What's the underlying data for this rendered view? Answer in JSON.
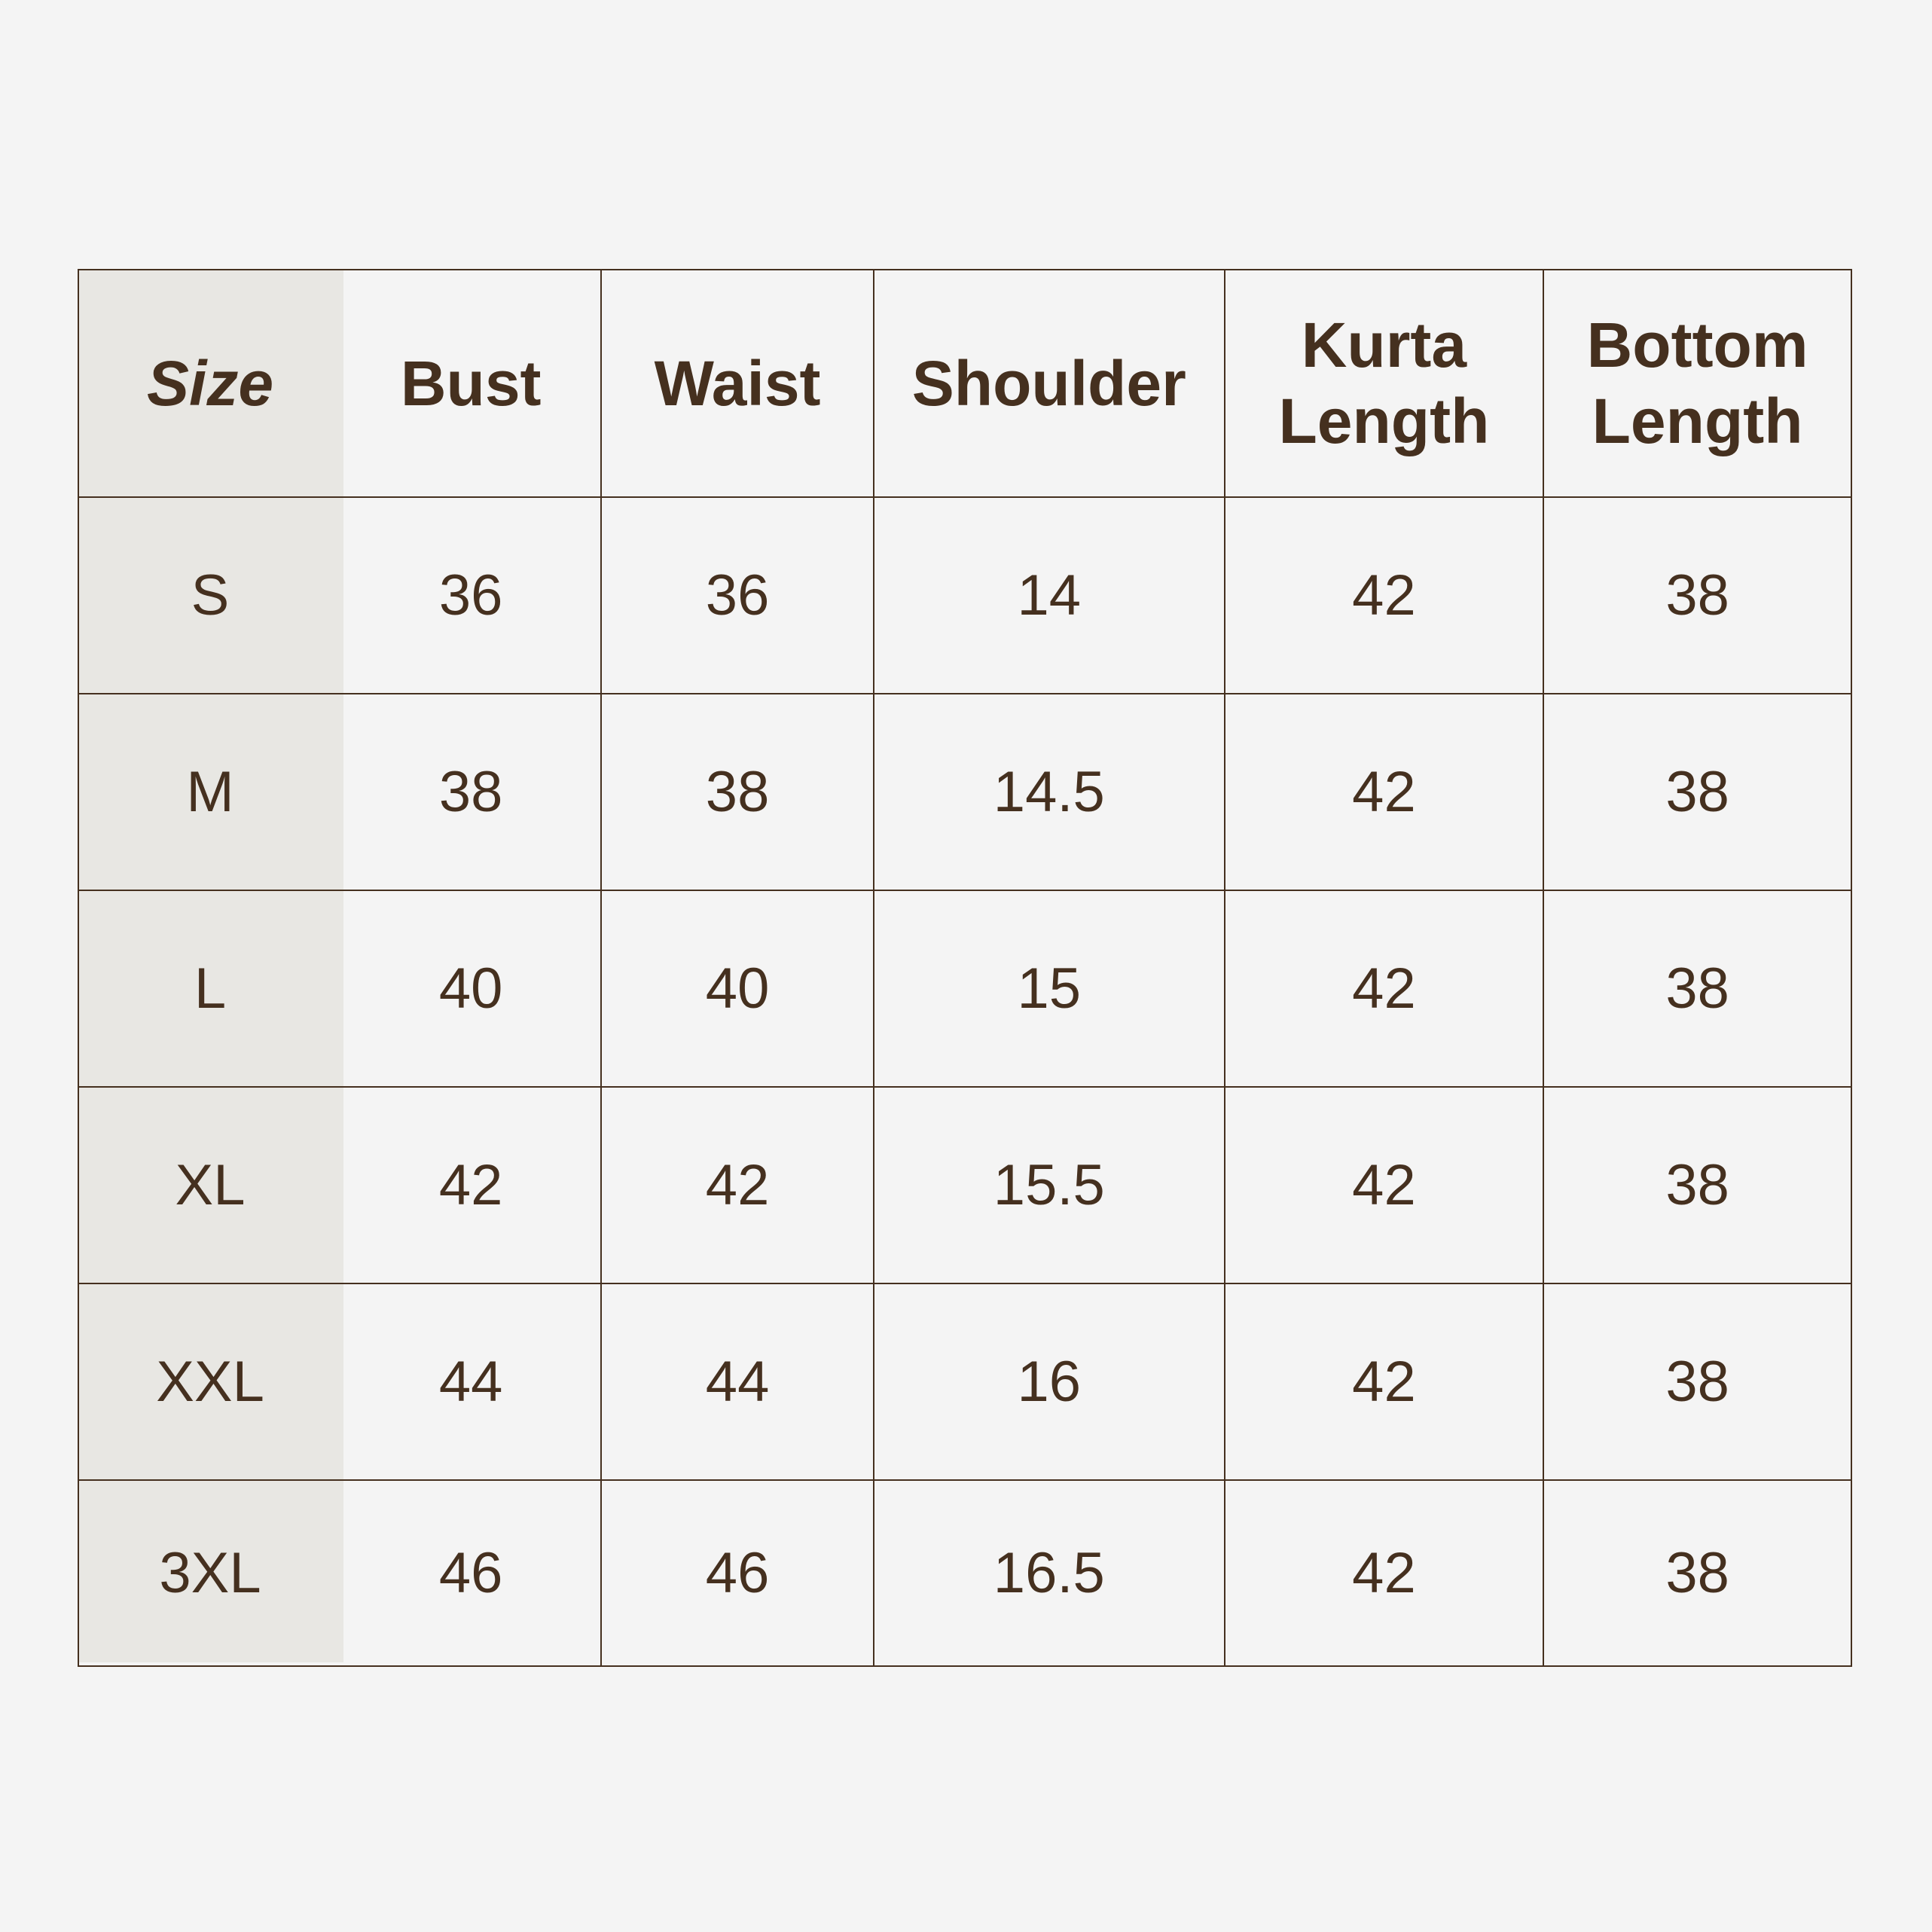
{
  "colors": {
    "background": "#f4f4f4",
    "size_column": "#e8e7e3",
    "text": "#45301f",
    "border": "#45301f"
  },
  "table": {
    "headers": [
      "Size",
      "Bust",
      "Waist",
      "Shoulder",
      "Kurta Length",
      "Bottom Length"
    ],
    "rows": [
      [
        "S",
        "36",
        "36",
        "14",
        "42",
        "38"
      ],
      [
        "M",
        "38",
        "38",
        "14.5",
        "42",
        "38"
      ],
      [
        "L",
        "40",
        "40",
        "15",
        "42",
        "38"
      ],
      [
        "XL",
        "42",
        "42",
        "15.5",
        "42",
        "38"
      ],
      [
        "XXL",
        "44",
        "44",
        "16",
        "42",
        "38"
      ],
      [
        "3XL",
        "46",
        "46",
        "16.5",
        "42",
        "38"
      ]
    ]
  }
}
